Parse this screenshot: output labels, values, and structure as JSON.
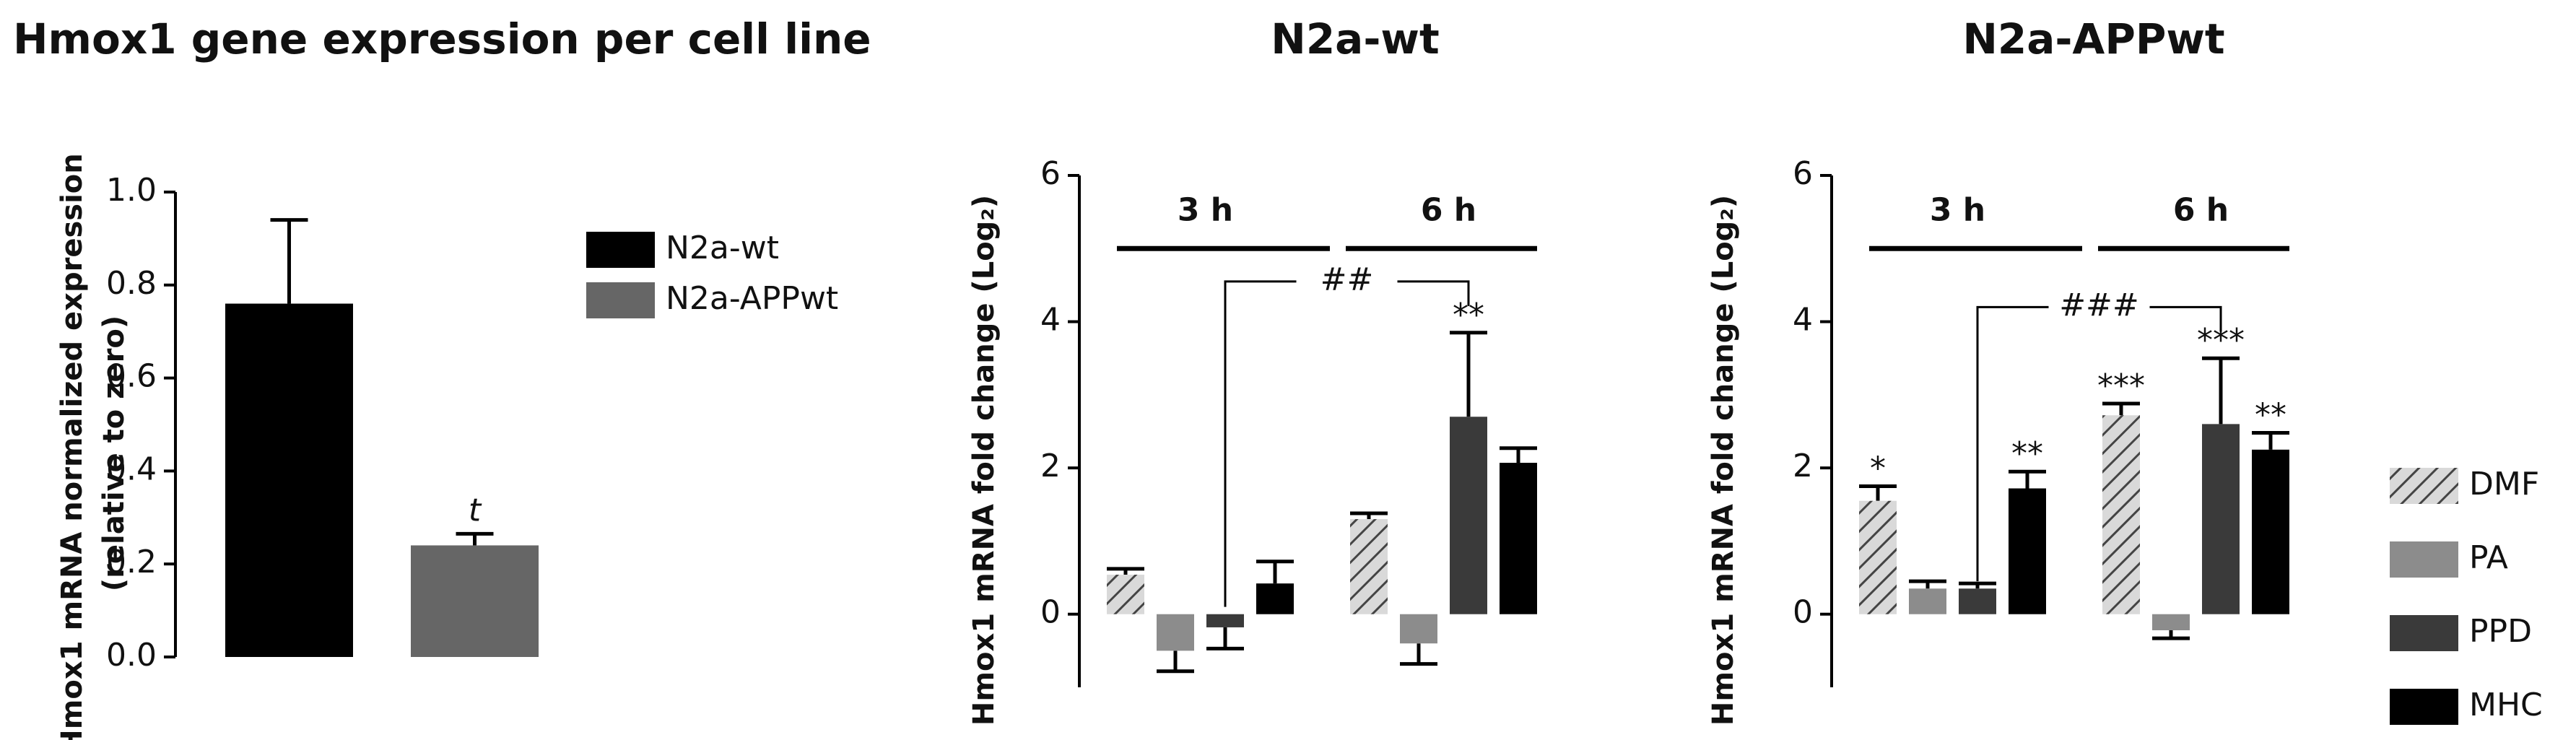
{
  "chart_data": [
    {
      "type": "bar",
      "title": "Hmox1 gene expression per cell line",
      "ylabel": [
        "Hmox1 mRNA normalized expression",
        "(relative to zero)"
      ],
      "ylim": [
        0,
        1
      ],
      "yticks": [
        {
          "value": 0,
          "label": "0.0"
        },
        0.2,
        0.4,
        0.6,
        0.8,
        {
          "value": 1,
          "label": "1.0"
        }
      ],
      "legend": "right",
      "series": [
        {
          "name": "N2a-wt",
          "color": "#000000",
          "values": [
            0.76
          ],
          "errors": [
            0.18
          ]
        },
        {
          "name": "N2a-APPwt",
          "color": "#666666",
          "values": [
            0.24
          ],
          "errors": [
            0.025
          ],
          "sig": [
            "t"
          ]
        }
      ]
    },
    {
      "type": "grouped_bar",
      "title": "N2a-wt",
      "ylabel": "Hmox1 mRNA fold change (Log₂)",
      "categories": [
        "3 h",
        "6 h"
      ],
      "ylim": [
        -1,
        6
      ],
      "yticks": [
        0,
        2,
        4,
        6
      ],
      "bracket": "##",
      "series": [
        {
          "color": "#d9d9d9",
          "hatch": true,
          "values": [
            0.54,
            1.3
          ],
          "errors": [
            0.08,
            0.08
          ]
        },
        {
          "color": "#8c8c8c",
          "values": [
            -0.5,
            -0.4
          ],
          "errors": [
            0.28,
            0.28
          ]
        },
        {
          "color": "#3a3a3a",
          "values": [
            -0.18,
            2.7
          ],
          "errors": [
            0.29,
            1.15
          ],
          "sig": [
            null,
            "**"
          ]
        },
        {
          "color": "#000000",
          "values": [
            0.42,
            2.07
          ],
          "errors": [
            0.3,
            0.2
          ]
        }
      ]
    },
    {
      "type": "grouped_bar",
      "title": "N2a-APPwt",
      "ylabel": "Hmox1 mRNA fold change (Log₂)",
      "categories": [
        "3 h",
        "6 h"
      ],
      "ylim": [
        -1,
        6
      ],
      "yticks": [
        0,
        2,
        4,
        6
      ],
      "bracket": "###",
      "legend": "right",
      "series": [
        {
          "name": "DMF",
          "color": "#d9d9d9",
          "hatch": true,
          "values": [
            1.55,
            2.72
          ],
          "errors": [
            0.2,
            0.16
          ],
          "sig": [
            "*",
            "***"
          ]
        },
        {
          "name": "PA",
          "color": "#8c8c8c",
          "values": [
            0.35,
            -0.22
          ],
          "errors": [
            0.1,
            0.11
          ]
        },
        {
          "name": "PPD",
          "color": "#3a3a3a",
          "values": [
            0.35,
            2.6
          ],
          "errors": [
            0.07,
            0.9
          ],
          "sig": [
            null,
            "***"
          ]
        },
        {
          "name": "MHC",
          "color": "#000000",
          "values": [
            1.72,
            2.25
          ],
          "errors": [
            0.23,
            0.23
          ],
          "sig": [
            "**",
            "**"
          ]
        }
      ]
    }
  ]
}
